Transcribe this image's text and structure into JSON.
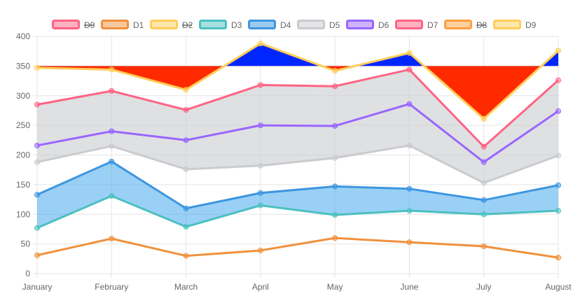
{
  "chart_data": {
    "type": "line",
    "categories": [
      "January",
      "February",
      "March",
      "April",
      "May",
      "June",
      "July",
      "August"
    ],
    "ylim": [
      0,
      400
    ],
    "yticks": [
      0,
      50,
      100,
      150,
      200,
      250,
      300,
      350,
      400
    ],
    "grid": true,
    "legend_position": "top",
    "series": [
      {
        "name": "D0",
        "hidden": true,
        "color": "#ff6384",
        "values": [
          null,
          null,
          null,
          null,
          null,
          null,
          null,
          null
        ]
      },
      {
        "name": "D1",
        "hidden": false,
        "color": "#f0913c",
        "values": [
          31,
          59,
          30,
          39,
          60,
          53,
          46,
          27
        ]
      },
      {
        "name": "D2",
        "hidden": true,
        "color": "#ffcd56",
        "values": [
          null,
          null,
          null,
          null,
          null,
          null,
          null,
          null
        ]
      },
      {
        "name": "D3",
        "hidden": false,
        "color": "#4bc0c0",
        "values": [
          77,
          131,
          79,
          115,
          99,
          106,
          100,
          106
        ]
      },
      {
        "name": "D4",
        "hidden": false,
        "color": "#3c96e0",
        "values": [
          133,
          189,
          110,
          136,
          147,
          143,
          124,
          149
        ]
      },
      {
        "name": "D5",
        "hidden": false,
        "color": "#c9cbcf",
        "values": [
          188,
          215,
          176,
          182,
          195,
          216,
          153,
          199
        ]
      },
      {
        "name": "D6",
        "hidden": false,
        "color": "#9966ff",
        "values": [
          216,
          240,
          225,
          250,
          249,
          286,
          188,
          274
        ]
      },
      {
        "name": "D7",
        "hidden": false,
        "color": "#ff6384",
        "values": [
          285,
          308,
          276,
          318,
          316,
          344,
          214,
          326
        ]
      },
      {
        "name": "D8",
        "hidden": true,
        "color": "#ff9f40",
        "values": [
          null,
          null,
          null,
          null,
          null,
          null,
          null,
          null
        ]
      },
      {
        "name": "D9",
        "hidden": false,
        "color": "#ffcd56",
        "values": [
          347,
          344,
          310,
          388,
          342,
          372,
          261,
          376
        ]
      }
    ],
    "fills": [
      {
        "between": [
          "D3",
          "D4"
        ],
        "color": "rgba(54,162,235,0.5)"
      },
      {
        "between": [
          "D5",
          "D7"
        ],
        "color": "rgba(201,203,207,0.6)"
      },
      {
        "from": "D9",
        "origin": 350,
        "above_color": "#0026ff",
        "below_color": "#ff2a00"
      }
    ]
  }
}
